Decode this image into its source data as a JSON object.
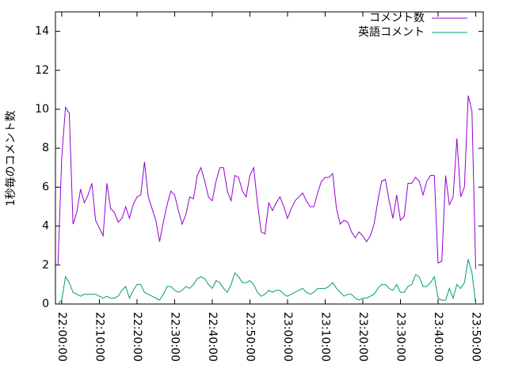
{
  "chart_data": {
    "type": "line",
    "y_label": "1秒毎のコメント数",
    "x": [
      "21:59:00",
      "22:00:00",
      "22:01:00",
      "22:02:00",
      "22:03:00",
      "22:04:00",
      "22:05:00",
      "22:06:00",
      "22:07:00",
      "22:08:00",
      "22:09:00",
      "22:10:00",
      "22:11:00",
      "22:12:00",
      "22:13:00",
      "22:14:00",
      "22:15:00",
      "22:16:00",
      "22:17:00",
      "22:18:00",
      "22:19:00",
      "22:20:00",
      "22:21:00",
      "22:22:00",
      "22:23:00",
      "22:24:00",
      "22:25:00",
      "22:26:00",
      "22:27:00",
      "22:28:00",
      "22:29:00",
      "22:30:00",
      "22:31:00",
      "22:32:00",
      "22:33:00",
      "22:34:00",
      "22:35:00",
      "22:36:00",
      "22:37:00",
      "22:38:00",
      "22:39:00",
      "22:40:00",
      "22:41:00",
      "22:42:00",
      "22:43:00",
      "22:44:00",
      "22:45:00",
      "22:46:00",
      "22:47:00",
      "22:48:00",
      "22:49:00",
      "22:50:00",
      "22:51:00",
      "22:52:00",
      "22:53:00",
      "22:54:00",
      "22:55:00",
      "22:56:00",
      "22:57:00",
      "22:58:00",
      "22:59:00",
      "23:00:00",
      "23:01:00",
      "23:02:00",
      "23:03:00",
      "23:04:00",
      "23:05:00",
      "23:06:00",
      "23:07:00",
      "23:08:00",
      "23:09:00",
      "23:10:00",
      "23:11:00",
      "23:12:00",
      "23:13:00",
      "23:14:00",
      "23:15:00",
      "23:16:00",
      "23:17:00",
      "23:18:00",
      "23:19:00",
      "23:20:00",
      "23:21:00",
      "23:22:00",
      "23:23:00",
      "23:24:00",
      "23:25:00",
      "23:26:00",
      "23:27:00",
      "23:28:00",
      "23:29:00",
      "23:30:00",
      "23:31:00",
      "23:32:00",
      "23:33:00",
      "23:34:00",
      "23:35:00",
      "23:36:00",
      "23:37:00",
      "23:38:00",
      "23:39:00",
      "23:40:00",
      "23:41:00",
      "23:42:00",
      "23:43:00",
      "23:44:00",
      "23:45:00",
      "23:46:00",
      "23:47:00",
      "23:48:00",
      "23:49:00",
      "23:50:00"
    ],
    "series": [
      {
        "name": "コメント数",
        "color": "#9400d3",
        "values": [
          2,
          7.5,
          10.1,
          9.8,
          4.1,
          4.7,
          5.9,
          5.2,
          5.6,
          6.2,
          4.3,
          3.9,
          3.5,
          6.2,
          4.9,
          4.7,
          4.2,
          4.4,
          5.0,
          4.4,
          5.1,
          5.5,
          5.6,
          7.3,
          5.5,
          4.9,
          4.3,
          3.2,
          4.2,
          5.1,
          5.8,
          5.6,
          4.8,
          4.1,
          4.6,
          5.5,
          5.4,
          6.6,
          7.0,
          6.3,
          5.5,
          5.3,
          6.3,
          7.0,
          7.0,
          5.8,
          5.3,
          6.6,
          6.5,
          5.8,
          5.5,
          6.6,
          7.0,
          5.2,
          3.7,
          3.6,
          5.2,
          4.8,
          5.2,
          5.5,
          5.0,
          4.4,
          4.9,
          5.3,
          5.5,
          5.7,
          5.3,
          5.0,
          5.0,
          5.7,
          6.3,
          6.5,
          6.5,
          6.7,
          4.9,
          4.1,
          4.3,
          4.2,
          3.7,
          3.4,
          3.7,
          3.5,
          3.2,
          3.5,
          4.1,
          5.3,
          6.3,
          6.4,
          5.3,
          4.4,
          5.6,
          4.3,
          4.5,
          6.2,
          6.2,
          6.5,
          6.3,
          5.6,
          6.3,
          6.6,
          6.6,
          2.1,
          2.2,
          6.6,
          5.1,
          5.5,
          8.5,
          5.5,
          6.0,
          10.7,
          9.9,
          1.8
        ]
      },
      {
        "name": "英語コメント",
        "color": "#009e73",
        "values": [
          0,
          0.2,
          1.4,
          1.1,
          0.6,
          0.5,
          0.4,
          0.5,
          0.5,
          0.5,
          0.5,
          0.4,
          0.3,
          0.4,
          0.3,
          0.3,
          0.4,
          0.7,
          0.9,
          0.3,
          0.7,
          1.0,
          1.0,
          0.6,
          0.5,
          0.4,
          0.3,
          0.2,
          0.5,
          0.9,
          0.9,
          0.7,
          0.6,
          0.7,
          0.9,
          0.8,
          1.0,
          1.3,
          1.4,
          1.3,
          1.0,
          0.8,
          1.2,
          1.1,
          0.8,
          0.6,
          1.0,
          1.6,
          1.4,
          1.1,
          1.1,
          1.2,
          1.0,
          0.6,
          0.4,
          0.5,
          0.7,
          0.6,
          0.7,
          0.7,
          0.5,
          0.4,
          0.5,
          0.6,
          0.7,
          0.8,
          0.6,
          0.5,
          0.6,
          0.8,
          0.8,
          0.8,
          0.9,
          1.1,
          0.8,
          0.6,
          0.4,
          0.5,
          0.5,
          0.3,
          0.2,
          0.3,
          0.3,
          0.4,
          0.5,
          0.8,
          1.0,
          1.0,
          0.8,
          0.7,
          1.0,
          0.6,
          0.6,
          0.9,
          1.0,
          1.5,
          1.4,
          0.9,
          0.9,
          1.1,
          1.4,
          0.3,
          0.2,
          0.2,
          0.8,
          0.3,
          1.0,
          0.8,
          1.1,
          2.3,
          1.6,
          0.0
        ]
      }
    ],
    "xlim": [
      "21:58:20",
      "23:52:00"
    ],
    "xticks": [
      "22:00:00",
      "22:10:00",
      "22:20:00",
      "22:30:00",
      "22:40:00",
      "22:50:00",
      "23:00:00",
      "23:10:00",
      "23:20:00",
      "23:30:00",
      "23:40:00",
      "23:50:00"
    ],
    "ylim": [
      0,
      15
    ],
    "yticks": [
      0,
      2,
      4,
      6,
      8,
      10,
      12,
      14
    ],
    "legend": "top-right"
  }
}
